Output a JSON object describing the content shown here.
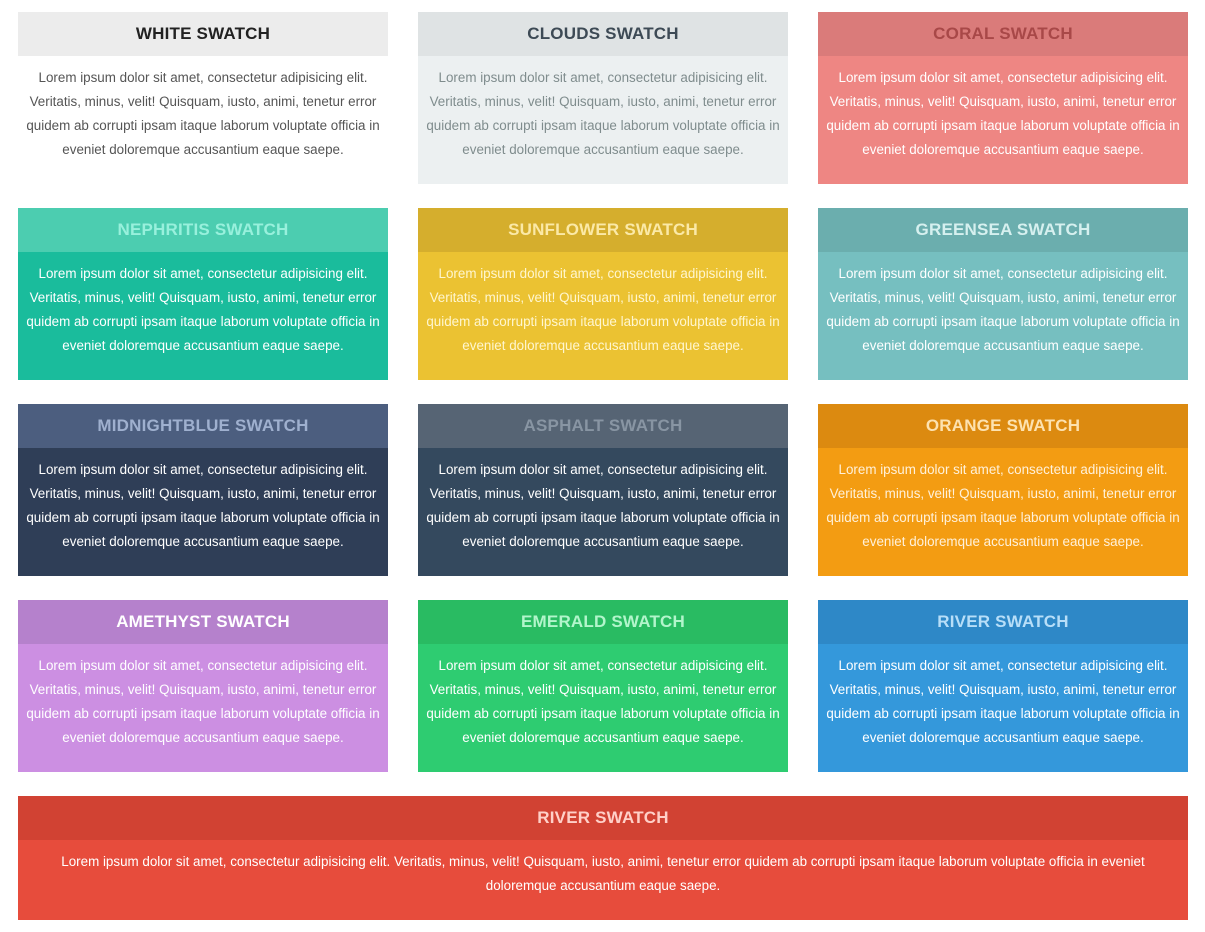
{
  "swatches": [
    {
      "title": "WHITE SWATCH",
      "text": "Lorem ipsum dolor sit amet, consectetur adipisicing elit. Veritatis, minus, velit! Quisquam, iusto, animi, tenetur error quidem ab corrupti ipsam itaque laborum voluptate officia in eveniet doloremque accusantium eaque saepe.",
      "head_bg": "#ececec",
      "head_fg": "#222222",
      "body_bg": "#ffffff",
      "body_fg": "#555555"
    },
    {
      "title": "CLOUDS SWATCH",
      "text": "Lorem ipsum dolor sit amet, consectetur adipisicing elit. Veritatis, minus, velit! Quisquam, iusto, animi, tenetur error quidem ab corrupti ipsam itaque laborum voluptate officia in eveniet doloremque accusantium eaque saepe.",
      "head_bg": "#dfe3e4",
      "head_fg": "#3d4a55",
      "body_bg": "#ecf0f1",
      "body_fg": "#7f8c8d"
    },
    {
      "title": "CORAL SWATCH",
      "text": "Lorem ipsum dolor sit amet, consectetur adipisicing elit. Veritatis, minus, velit! Quisquam, iusto, animi, tenetur error quidem ab corrupti ipsam itaque laborum voluptate officia in eveniet doloremque accusantium eaque saepe.",
      "head_bg": "#da7b7a",
      "head_fg": "#a84848",
      "body_bg": "#ee8683",
      "body_fg": "#ffffff"
    },
    {
      "title": "NEPHRITIS SWATCH",
      "text": "Lorem ipsum dolor sit amet, consectetur adipisicing elit. Veritatis, minus, velit! Quisquam, iusto, animi, tenetur error quidem ab corrupti ipsam itaque laborum voluptate officia in eveniet doloremque accusantium eaque saepe.",
      "head_bg": "#4ccdb0",
      "head_fg": "#98f0dc",
      "body_bg": "#1abc9c",
      "body_fg": "#ffffff"
    },
    {
      "title": "SUNFLOWER SWATCH",
      "text": "Lorem ipsum dolor sit amet, consectetur adipisicing elit. Veritatis, minus, velit! Quisquam, iusto, animi, tenetur error quidem ab corrupti ipsam itaque laborum voluptate officia in eveniet doloremque accusantium eaque saepe.",
      "head_bg": "#d5ae2d",
      "head_fg": "#fbe9a7",
      "body_bg": "#ebc232",
      "body_fg": "#fff6cf"
    },
    {
      "title": "GREENSEA SWATCH",
      "text": "Lorem ipsum dolor sit amet, consectetur adipisicing elit. Veritatis, minus, velit! Quisquam, iusto, animi, tenetur error quidem ab corrupti ipsam itaque laborum voluptate officia in eveniet doloremque accusantium eaque saepe.",
      "head_bg": "#6baeae",
      "head_fg": "#d6f0ef",
      "body_bg": "#76bfc0",
      "body_fg": "#ffffff"
    },
    {
      "title": "MIDNIGHTBLUE SWATCH",
      "text": "Lorem ipsum dolor sit amet, consectetur adipisicing elit. Veritatis, minus, velit! Quisquam, iusto, animi, tenetur error quidem ab corrupti ipsam itaque laborum voluptate officia in eveniet doloremque accusantium eaque saepe.",
      "head_bg": "#4c5e7f",
      "head_fg": "#9fb0cf",
      "body_bg": "#2f3e57",
      "body_fg": "#ffffff"
    },
    {
      "title": "ASPHALT SWATCH",
      "text": "Lorem ipsum dolor sit amet, consectetur adipisicing elit. Veritatis, minus, velit! Quisquam, iusto, animi, tenetur error quidem ab corrupti ipsam itaque laborum voluptate officia in eveniet doloremque accusantium eaque saepe.",
      "head_bg": "#566474",
      "head_fg": "#8895a3",
      "body_bg": "#34495e",
      "body_fg": "#ffffff"
    },
    {
      "title": "ORANGE SWATCH",
      "text": "Lorem ipsum dolor sit amet, consectetur adipisicing elit. Veritatis, minus, velit! Quisquam, iusto, animi, tenetur error quidem ab corrupti ipsam itaque laborum voluptate officia in eveniet doloremque accusantium eaque saepe.",
      "head_bg": "#dc8a10",
      "head_fg": "#fde2b0",
      "body_bg": "#f39c12",
      "body_fg": "#fff1da"
    },
    {
      "title": "AMETHYST SWATCH",
      "text": "Lorem ipsum dolor sit amet, consectetur adipisicing elit. Veritatis, minus, velit! Quisquam, iusto, animi, tenetur error quidem ab corrupti ipsam itaque laborum voluptate officia in eveniet doloremque accusantium eaque saepe.",
      "head_bg": "#b581cc",
      "head_fg": "#ffffff",
      "body_bg": "#cc8fe2",
      "body_fg": "#ffffff"
    },
    {
      "title": "EMERALD SWATCH",
      "text": "Lorem ipsum dolor sit amet, consectetur adipisicing elit. Veritatis, minus, velit! Quisquam, iusto, animi, tenetur error quidem ab corrupti ipsam itaque laborum voluptate officia in eveniet doloremque accusantium eaque saepe.",
      "head_bg": "#29bb62",
      "head_fg": "#b2f5cb",
      "body_bg": "#2ecc71",
      "body_fg": "#ffffff"
    },
    {
      "title": "RIVER SWATCH",
      "text": "Lorem ipsum dolor sit amet, consectetur adipisicing elit. Veritatis, minus, velit! Quisquam, iusto, animi, tenetur error quidem ab corrupti ipsam itaque laborum voluptate officia in eveniet doloremque accusantium eaque saepe.",
      "head_bg": "#2e88c7",
      "head_fg": "#b7def8",
      "body_bg": "#3498db",
      "body_fg": "#ffffff"
    },
    {
      "title": "RIVER SWATCH",
      "text": "Lorem ipsum dolor sit amet, consectetur adipisicing elit. Veritatis, minus, velit! Quisquam, iusto, animi, tenetur error quidem ab corrupti ipsam itaque laborum voluptate officia in eveniet doloremque accusantium eaque saepe.",
      "head_bg": "#d14233",
      "head_fg": "#ffd0c8",
      "body_bg": "#e74c3c",
      "body_fg": "#ffffff"
    }
  ]
}
